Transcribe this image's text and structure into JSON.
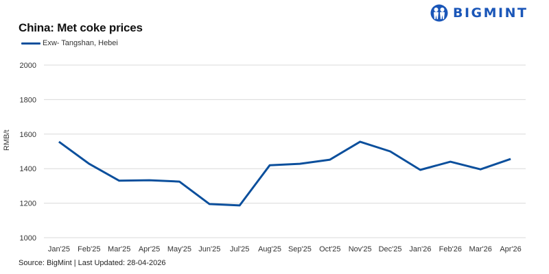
{
  "header": {
    "title": "China: Met coke prices",
    "logo_text": "BIGMINT",
    "logo_color": "#1A56B8"
  },
  "legend": {
    "entries": [
      {
        "label": "Exw- Tangshan, Hebei",
        "color": "#0B4F9C"
      }
    ]
  },
  "footer": {
    "source": "Source: BigMint | Last Updated: 28-04-2026"
  },
  "chart_data": {
    "type": "line",
    "title": "China: Met coke prices",
    "xlabel": "",
    "ylabel": "RMB/t",
    "ylim": [
      1000,
      2000
    ],
    "yticks": [
      1000,
      1200,
      1400,
      1600,
      1800,
      2000
    ],
    "grid": true,
    "legend_position": "top-left",
    "categories": [
      "Jan'25",
      "Feb'25",
      "Mar'25",
      "Apr'25",
      "May'25",
      "Jun'25",
      "Jul'25",
      "Aug'25",
      "Sep'25",
      "Oct'25",
      "Nov'25",
      "Dec'25",
      "Jan'26",
      "Feb'26",
      "Mar'26",
      "Apr'26"
    ],
    "series": [
      {
        "name": "Exw- Tangshan, Hebei",
        "color": "#0B4F9C",
        "values": [
          1556,
          1428,
          1330,
          1333,
          1325,
          1195,
          1187,
          1420,
          1428,
          1452,
          1556,
          1500,
          1393,
          1440,
          1396,
          1456
        ]
      }
    ],
    "source": "Source: BigMint | Last Updated: 28-04-2026"
  }
}
